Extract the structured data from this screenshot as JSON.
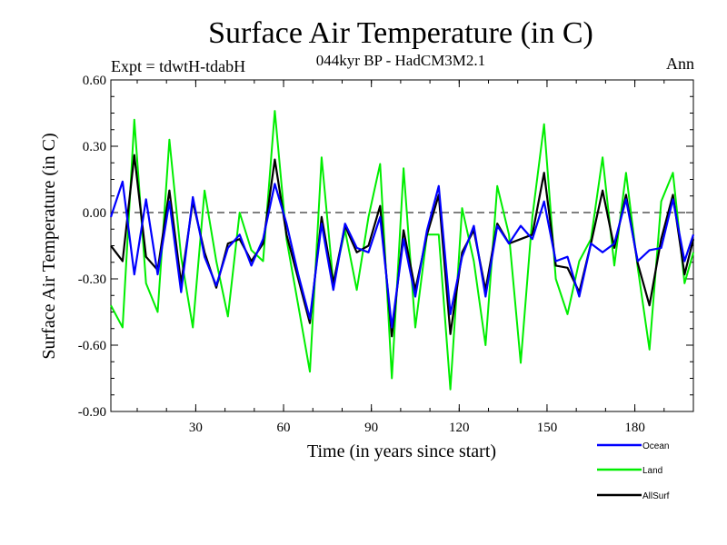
{
  "header": {
    "title": "Surface Air Temperature (in C)",
    "subtitle": "044kyr BP - HadCM3M2.1",
    "expt_label": "Expt = tdwtH-tdabH",
    "period_label": "Ann"
  },
  "colors": {
    "ocean": "#0000ff",
    "land": "#00ee00",
    "allsurf": "#000000",
    "axis": "#000000",
    "zero_line": "#000000"
  },
  "chart_data": {
    "type": "line",
    "title": "Surface Air Temperature (in C)",
    "xlabel": "Time (in years since start)",
    "ylabel": "Surface Air Temperature (in C)",
    "xlim": [
      1,
      200
    ],
    "ylim": [
      -0.9,
      0.6
    ],
    "xticks": [
      30,
      60,
      90,
      120,
      150,
      180
    ],
    "yticks": [
      -0.9,
      -0.6,
      -0.3,
      0.0,
      0.3,
      0.6
    ],
    "ytick_labels": [
      "-0.90",
      "-0.60",
      "-0.30",
      "0.00",
      "0.30",
      "0.60"
    ],
    "zero_line": true,
    "legend_position": "bottom-right",
    "x": [
      1,
      5,
      9,
      13,
      17,
      21,
      25,
      29,
      33,
      37,
      41,
      45,
      49,
      53,
      57,
      61,
      65,
      69,
      73,
      77,
      81,
      85,
      89,
      93,
      97,
      101,
      105,
      109,
      113,
      117,
      121,
      125,
      129,
      133,
      137,
      141,
      145,
      149,
      153,
      157,
      161,
      165,
      169,
      173,
      177,
      181,
      185,
      189,
      193,
      197,
      200
    ],
    "series": [
      {
        "name": "Ocean",
        "key": "ocean",
        "values": [
          -0.02,
          0.14,
          -0.28,
          0.06,
          -0.28,
          0.05,
          -0.36,
          0.07,
          -0.2,
          -0.33,
          -0.16,
          -0.1,
          -0.24,
          -0.12,
          0.13,
          -0.05,
          -0.28,
          -0.48,
          -0.05,
          -0.35,
          -0.05,
          -0.16,
          -0.18,
          -0.02,
          -0.52,
          -0.12,
          -0.38,
          -0.08,
          0.12,
          -0.46,
          -0.2,
          -0.06,
          -0.38,
          -0.06,
          -0.14,
          -0.06,
          -0.12,
          0.05,
          -0.22,
          -0.2,
          -0.38,
          -0.14,
          -0.18,
          -0.14,
          0.06,
          -0.22,
          -0.17,
          -0.16,
          0.06,
          -0.22,
          -0.1
        ]
      },
      {
        "name": "Land",
        "key": "land",
        "values": [
          -0.42,
          -0.52,
          0.42,
          -0.32,
          -0.45,
          0.33,
          -0.2,
          -0.52,
          0.1,
          -0.22,
          -0.47,
          0.0,
          -0.17,
          -0.22,
          0.46,
          -0.12,
          -0.42,
          -0.72,
          0.25,
          -0.32,
          -0.08,
          -0.35,
          -0.02,
          0.22,
          -0.75,
          0.2,
          -0.52,
          -0.1,
          -0.1,
          -0.8,
          0.02,
          -0.22,
          -0.6,
          0.12,
          -0.1,
          -0.68,
          -0.02,
          0.4,
          -0.3,
          -0.46,
          -0.22,
          -0.12,
          0.25,
          -0.24,
          0.18,
          -0.25,
          -0.62,
          0.05,
          0.18,
          -0.32,
          -0.18
        ]
      },
      {
        "name": "AllSurf",
        "key": "allsurf",
        "values": [
          -0.15,
          -0.22,
          0.26,
          -0.2,
          -0.26,
          0.1,
          -0.32,
          0.05,
          -0.18,
          -0.34,
          -0.14,
          -0.12,
          -0.22,
          -0.14,
          0.24,
          -0.1,
          -0.3,
          -0.5,
          -0.02,
          -0.32,
          -0.06,
          -0.18,
          -0.15,
          0.03,
          -0.56,
          -0.08,
          -0.35,
          -0.1,
          0.08,
          -0.55,
          -0.18,
          -0.08,
          -0.35,
          -0.05,
          -0.14,
          -0.12,
          -0.1,
          0.18,
          -0.24,
          -0.25,
          -0.36,
          -0.14,
          0.1,
          -0.16,
          0.08,
          -0.23,
          -0.42,
          -0.12,
          0.08,
          -0.28,
          -0.12
        ]
      }
    ]
  },
  "legend": {
    "items": [
      {
        "label": "Ocean",
        "key": "ocean"
      },
      {
        "label": "Land",
        "key": "land"
      },
      {
        "label": "AllSurf",
        "key": "allsurf"
      }
    ]
  }
}
